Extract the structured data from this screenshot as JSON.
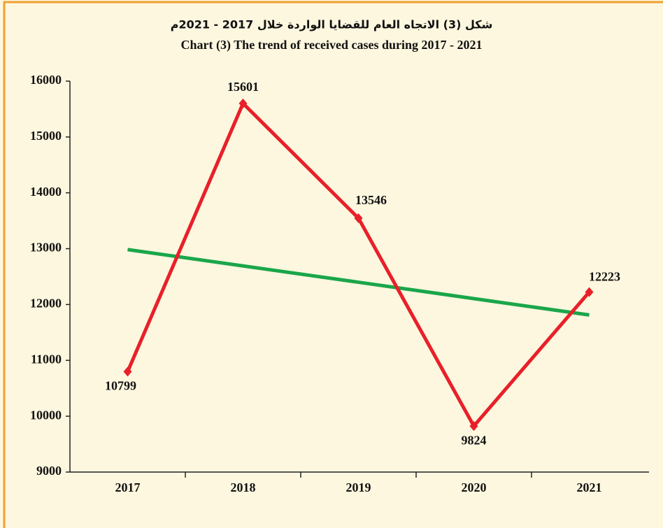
{
  "chart_data": {
    "type": "line",
    "title": "شكل (3) الاتجاه العام للقضايا الواردة خلال 2017 - 2021م",
    "subtitle": "Chart (3) The trend of received cases during  2017 - 2021",
    "categories": [
      "2017",
      "2018",
      "2019",
      "2020",
      "2021"
    ],
    "series": [
      {
        "color": "#e8202a",
        "values": [
          10799,
          15601,
          13546,
          9824,
          12223
        ],
        "markers": true,
        "data_labels": true
      },
      {
        "color": "#1aa64a",
        "values": [
          12984,
          12691,
          12399,
          12106,
          11813
        ],
        "markers": false,
        "data_labels": false
      }
    ],
    "ylim": [
      9000,
      16000
    ],
    "yticks": [
      9000,
      10000,
      11000,
      12000,
      13000,
      14000,
      15000,
      16000
    ],
    "grid": false
  }
}
